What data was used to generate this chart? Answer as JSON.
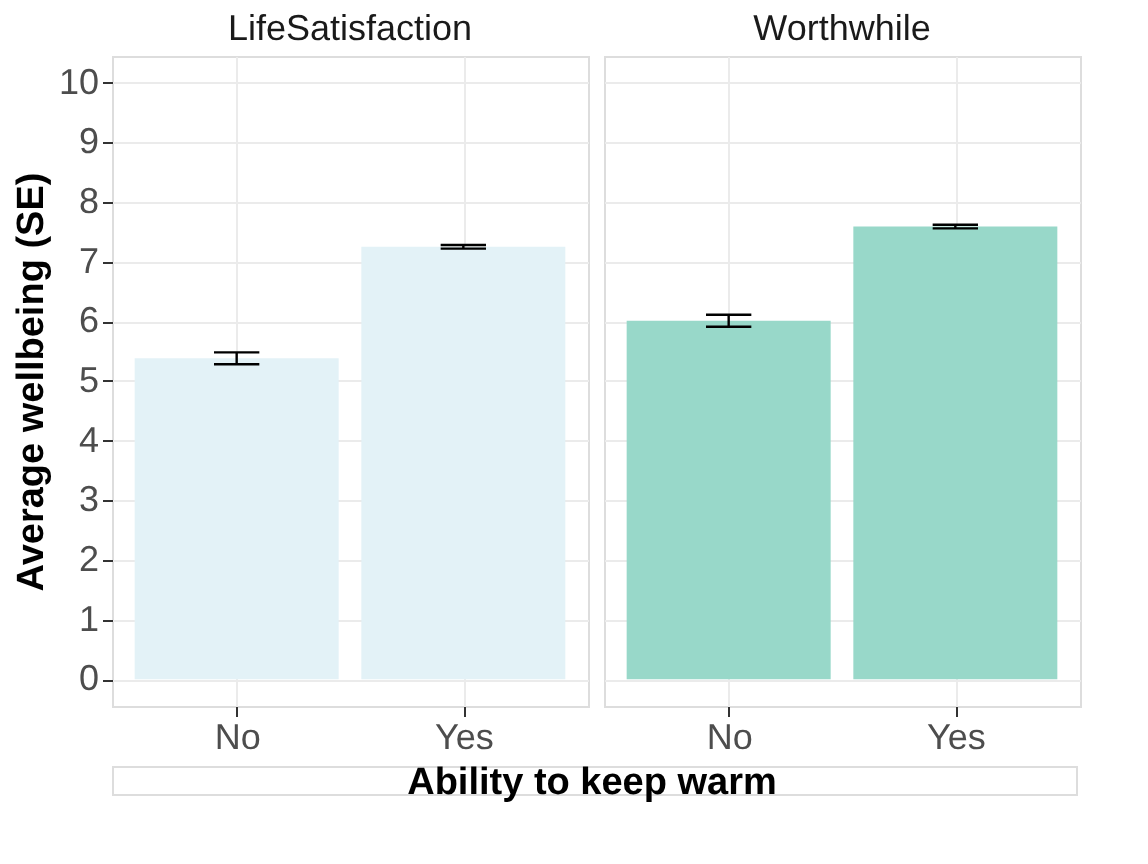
{
  "chart_data": [
    {
      "type": "bar",
      "title": "LifeSatisfaction",
      "ylabel": "Average wellbeing (SE)",
      "xlabel": "Ability to keep warm",
      "categories": [
        "No",
        "Yes"
      ],
      "values": [
        5.38,
        7.25
      ],
      "errors": [
        0.1,
        0.03
      ],
      "color": "#e3f2f7",
      "ylim": [
        -0.45,
        10.45
      ],
      "yticks": [
        0,
        1,
        2,
        3,
        4,
        5,
        6,
        7,
        8,
        9,
        10
      ],
      "grid": true
    },
    {
      "type": "bar",
      "title": "Worthwhile",
      "categories": [
        "No",
        "Yes"
      ],
      "values": [
        6.01,
        7.59
      ],
      "errors": [
        0.1,
        0.03
      ],
      "color": "#98d8c9",
      "ylim": [
        -0.45,
        10.45
      ],
      "yticks": [
        0,
        1,
        2,
        3,
        4,
        5,
        6,
        7,
        8,
        9,
        10
      ],
      "grid": true,
      "tick_labels": "x"
    }
  ]
}
